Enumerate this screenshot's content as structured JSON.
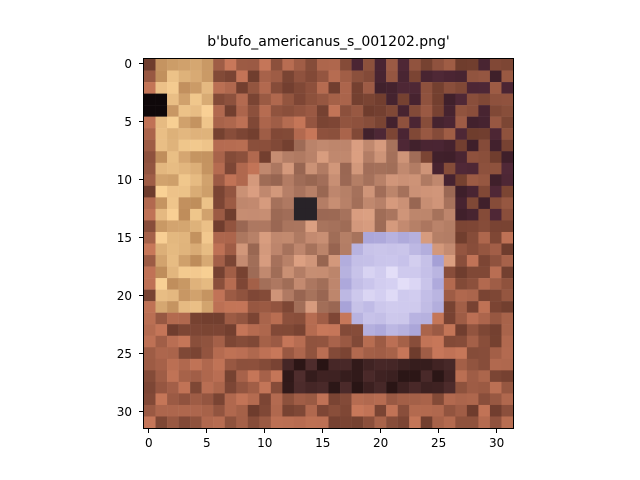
{
  "figure": {
    "title": "b'bufo_americanus_s_001202.png'",
    "image_description": "Low-resolution (32x32) pixelated photo of an American toad with a pale violet inflated vocal sac against brown and tan leaf litter.",
    "xticks": [
      "0",
      "5",
      "10",
      "15",
      "20",
      "25",
      "30"
    ],
    "yticks": [
      "0",
      "5",
      "10",
      "15",
      "20",
      "25",
      "30"
    ],
    "palette": {
      "dark_brown": "#3b1f17",
      "brown": "#7a4a35",
      "rust": "#9c5a3a",
      "tan": "#c89a6a",
      "cream": "#e8d2a0",
      "violet": "#9a90d0",
      "lavender": "#c4bde8",
      "black": "#140a0e"
    }
  }
}
